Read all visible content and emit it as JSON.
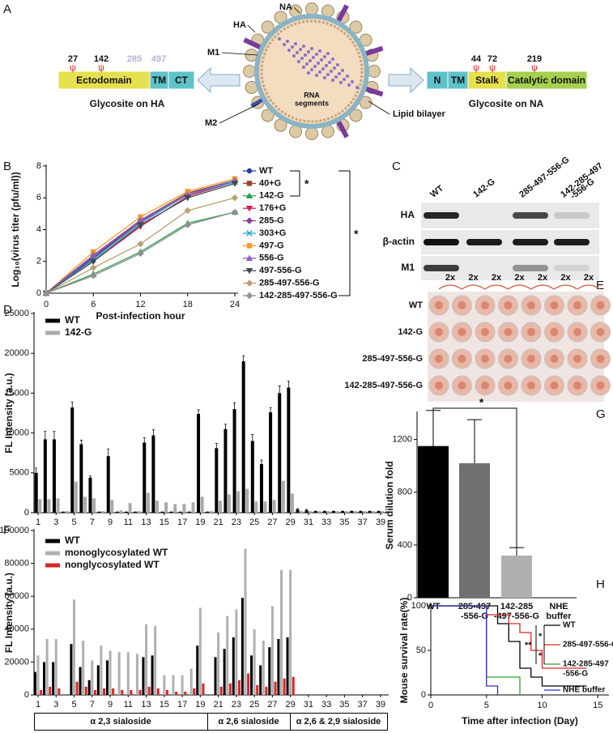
{
  "panel_labels": [
    "A",
    "B",
    "C",
    "D",
    "E",
    "F",
    "G",
    "H"
  ],
  "diagram": {
    "glycan_symbol": "ψ",
    "ha": {
      "sites": [
        "27",
        "142"
      ],
      "faded_sites": [
        "285",
        "497"
      ],
      "domains": [
        "Ectodomain",
        "TM",
        "CT"
      ],
      "caption": "Glycosite on HA"
    },
    "na": {
      "sites": [
        "44",
        "72",
        "219"
      ],
      "domains": [
        "N",
        "TM",
        "Stalk",
        "Catalytic domain"
      ],
      "caption": "Glycosite on NA"
    },
    "virus_labels": [
      "NA",
      "HA",
      "M1",
      "M2",
      "Lipid bilayer"
    ],
    "rna_label": [
      "RNA",
      "segments"
    ]
  },
  "blot": {
    "lanes": [
      [
        "WT"
      ],
      [
        "142-G"
      ],
      [
        "285-497-556-G"
      ],
      [
        "142-285-497",
        "-556-G"
      ]
    ],
    "rows": [
      "HA",
      "β-actin",
      "M1"
    ]
  },
  "plate": {
    "rows": [
      "WT",
      "142-G",
      "285-497-556-G",
      "142-285-497-556-G"
    ],
    "dilution": [
      "2x",
      "2x",
      "2x",
      "2x",
      "2x",
      "2x",
      "2x"
    ]
  },
  "chart_data": [
    {
      "type": "line",
      "xlabel": "Post-infection hour",
      "ylabel": "Log₁₀(virus titer (pfu/ml))",
      "x": [
        0,
        6,
        12,
        18,
        24
      ],
      "xlim": [
        0,
        24
      ],
      "xticks": [
        0,
        6,
        12,
        18,
        24
      ],
      "ylim": [
        0,
        8
      ],
      "yticks": [
        0,
        2,
        4,
        6,
        8
      ],
      "annotations": [
        "*",
        "*"
      ],
      "series": [
        {
          "name": "WT",
          "color": "#2e3f9e",
          "marker": "circle",
          "values": [
            0,
            2.2,
            4.5,
            6.3,
            7.0
          ]
        },
        {
          "name": "40+G",
          "color": "#a0432f",
          "marker": "square",
          "values": [
            0,
            2.3,
            4.6,
            6.3,
            7.1
          ]
        },
        {
          "name": "142-G",
          "color": "#2f9a4f",
          "marker": "triangle",
          "values": [
            0,
            1.2,
            2.6,
            4.4,
            5.1
          ]
        },
        {
          "name": "176+G",
          "color": "#d02050",
          "marker": "triangle-down",
          "values": [
            0,
            2.0,
            4.2,
            6.1,
            7.0
          ]
        },
        {
          "name": "285-G",
          "color": "#8a3f9a",
          "marker": "diamond",
          "values": [
            0,
            2.3,
            4.5,
            6.2,
            7.0
          ]
        },
        {
          "name": "303+G",
          "color": "#2aa7c8",
          "marker": "x",
          "values": [
            0,
            2.1,
            4.4,
            6.2,
            7.0
          ]
        },
        {
          "name": "497-G",
          "color": "#f09a30",
          "marker": "square",
          "values": [
            0,
            2.6,
            4.8,
            6.4,
            7.2
          ]
        },
        {
          "name": "556-G",
          "color": "#8a5fc0",
          "marker": "triangle",
          "values": [
            0,
            2.4,
            4.6,
            6.2,
            7.1
          ]
        },
        {
          "name": "497-556-G",
          "color": "#404850",
          "marker": "triangle-down",
          "values": [
            0,
            2.0,
            4.3,
            6.0,
            6.9
          ]
        },
        {
          "name": "285-497-556-G",
          "color": "#b8a070",
          "marker": "diamond",
          "values": [
            0,
            1.6,
            3.1,
            5.2,
            6.0
          ]
        },
        {
          "name": "142-285-497-556-G",
          "color": "#909090",
          "marker": "diamond",
          "values": [
            0,
            1.1,
            2.5,
            4.3,
            5.1
          ]
        }
      ]
    },
    {
      "type": "bar",
      "ylabel": "FL Intensity (a.u.)",
      "categories": [
        "1",
        null,
        "3",
        null,
        "5",
        null,
        "7",
        null,
        "9",
        null,
        "11",
        null,
        "13",
        null,
        "15",
        null,
        "17",
        null,
        "19",
        null,
        "21",
        null,
        "23",
        null,
        "25",
        null,
        "27",
        null,
        "29",
        null,
        "31",
        null,
        "33",
        null,
        "35",
        null,
        "37",
        null,
        "39"
      ],
      "ylim": [
        0,
        25000
      ],
      "yticks": [
        0,
        5000,
        10000,
        15000,
        20000,
        25000
      ],
      "series": [
        {
          "name": "WT",
          "color": "#000000",
          "values": [
            5000,
            9200,
            9200,
            100,
            13200,
            8600,
            4400,
            100,
            7100,
            100,
            100,
            100,
            8800,
            9700,
            100,
            100,
            100,
            100,
            12400,
            100,
            8100,
            10500,
            13000,
            19000,
            9000,
            6100,
            12600,
            15000,
            15700,
            400,
            300,
            200,
            200,
            200,
            200,
            200,
            200,
            200,
            200
          ],
          "errors": [
            600,
            1000,
            1000,
            0,
            700,
            500,
            200,
            0,
            900,
            0,
            0,
            0,
            600,
            700,
            0,
            0,
            0,
            0,
            500,
            0,
            600,
            600,
            800,
            700,
            800,
            500,
            600,
            900,
            800,
            100,
            100,
            0,
            0,
            0,
            0,
            0,
            0,
            0,
            0
          ]
        },
        {
          "name": "142-G",
          "color": "#aaaaaa",
          "values": [
            1700,
            1700,
            1800,
            200,
            3900,
            2000,
            1800,
            200,
            1600,
            300,
            1200,
            200,
            2500,
            1500,
            1300,
            1100,
            1100,
            1300,
            2000,
            200,
            1500,
            2300,
            2700,
            3000,
            1400,
            1400,
            1600,
            4000,
            2400,
            200,
            200,
            200,
            200,
            200,
            200,
            200,
            200,
            200,
            200
          ]
        }
      ]
    },
    {
      "type": "bar",
      "ylabel": "FL Intensity (a.u.)",
      "categories": [
        "1",
        null,
        "3",
        null,
        "5",
        null,
        "7",
        null,
        "9",
        null,
        "11",
        null,
        "13",
        null,
        "15",
        null,
        "17",
        null,
        "19",
        null,
        "21",
        null,
        "23",
        null,
        "25",
        null,
        "27",
        null,
        "29",
        null,
        "31",
        null,
        "33",
        null,
        "35",
        null,
        "37",
        null,
        "39"
      ],
      "ylim": [
        0,
        100000
      ],
      "yticks": [
        0,
        20000,
        40000,
        60000,
        80000,
        100000
      ],
      "groups": [
        "α 2,3 sialoside",
        "α 2,6 sialoside",
        "α 2,6 & 2,9 sialoside"
      ],
      "series": [
        {
          "name": "WT",
          "color": "#000000",
          "values": [
            14000,
            20000,
            20000,
            0,
            31000,
            17000,
            9000,
            18000,
            21000,
            0,
            0,
            0,
            23000,
            24000,
            0,
            0,
            0,
            0,
            30000,
            0,
            23000,
            28000,
            35000,
            59000,
            24000,
            18000,
            29000,
            34000,
            35000,
            0,
            0,
            0,
            0,
            0,
            0,
            0,
            0,
            0,
            0
          ]
        },
        {
          "name": "monoglycosylated WT",
          "color": "#b0b0b0",
          "values": [
            24000,
            34000,
            34000,
            0,
            58000,
            33000,
            21000,
            30000,
            27000,
            26000,
            26000,
            25000,
            43000,
            42000,
            12000,
            12000,
            12000,
            16000,
            53000,
            0,
            38000,
            48000,
            52000,
            89000,
            40000,
            33000,
            54000,
            76000,
            76000,
            0,
            0,
            0,
            0,
            0,
            0,
            0,
            0,
            0,
            0
          ]
        },
        {
          "name": "nonglycosylated WT",
          "color": "#d62728",
          "values": [
            3000,
            5000,
            4000,
            0,
            8000,
            5000,
            3000,
            4000,
            4000,
            3000,
            3000,
            3000,
            5000,
            4000,
            3000,
            2000,
            2000,
            4000,
            7000,
            0,
            5000,
            7000,
            9000,
            13000,
            6000,
            5000,
            8000,
            10000,
            11000,
            0,
            0,
            0,
            0,
            0,
            0,
            0,
            0,
            0,
            0
          ]
        }
      ]
    },
    {
      "type": "bar",
      "ylabel": "Serum dilution fold",
      "categories": [
        [
          "WT"
        ],
        [
          "285-497",
          "-556-G"
        ],
        [
          "142-285",
          "-497-556-G"
        ],
        [
          "NHE",
          "buffer"
        ]
      ],
      "values": [
        1150,
        1020,
        320,
        0
      ],
      "errors": [
        270,
        330,
        60,
        0
      ],
      "colors": [
        "#000000",
        "#707070",
        "#b0b0b0",
        "#000000"
      ],
      "ylim": [
        0,
        1400
      ],
      "yticks": [
        0,
        400,
        800,
        1200
      ],
      "annotations": [
        "*"
      ]
    },
    {
      "type": "step",
      "xlabel": "Time after infection (Day)",
      "ylabel": "Mouse survival rate(%)",
      "xlim": [
        0,
        16
      ],
      "xticks": [
        0,
        5,
        10,
        15
      ],
      "ylim": [
        0,
        100
      ],
      "yticks": [
        0,
        50,
        100
      ],
      "annotations": [
        "**",
        "*",
        "*"
      ],
      "series": [
        {
          "name": [
            "WT"
          ],
          "color": "#000000",
          "x": [
            0,
            6,
            7,
            8,
            9,
            10,
            14
          ],
          "values": [
            100,
            80,
            60,
            30,
            20,
            10,
            10
          ]
        },
        {
          "name": [
            "285-497-556-G"
          ],
          "color": "#d62728",
          "x": [
            0,
            5,
            7,
            8,
            9,
            10,
            14
          ],
          "values": [
            100,
            90,
            80,
            70,
            50,
            30,
            30
          ]
        },
        {
          "name": [
            "142-285-497",
            "-556-G"
          ],
          "color": "#2ca02c",
          "x": [
            0,
            5,
            8
          ],
          "values": [
            100,
            20,
            0
          ]
        },
        {
          "name": [
            "NHE buffer"
          ],
          "color": "#3030c0",
          "x": [
            0,
            5,
            6
          ],
          "values": [
            100,
            10,
            0
          ]
        }
      ]
    }
  ]
}
